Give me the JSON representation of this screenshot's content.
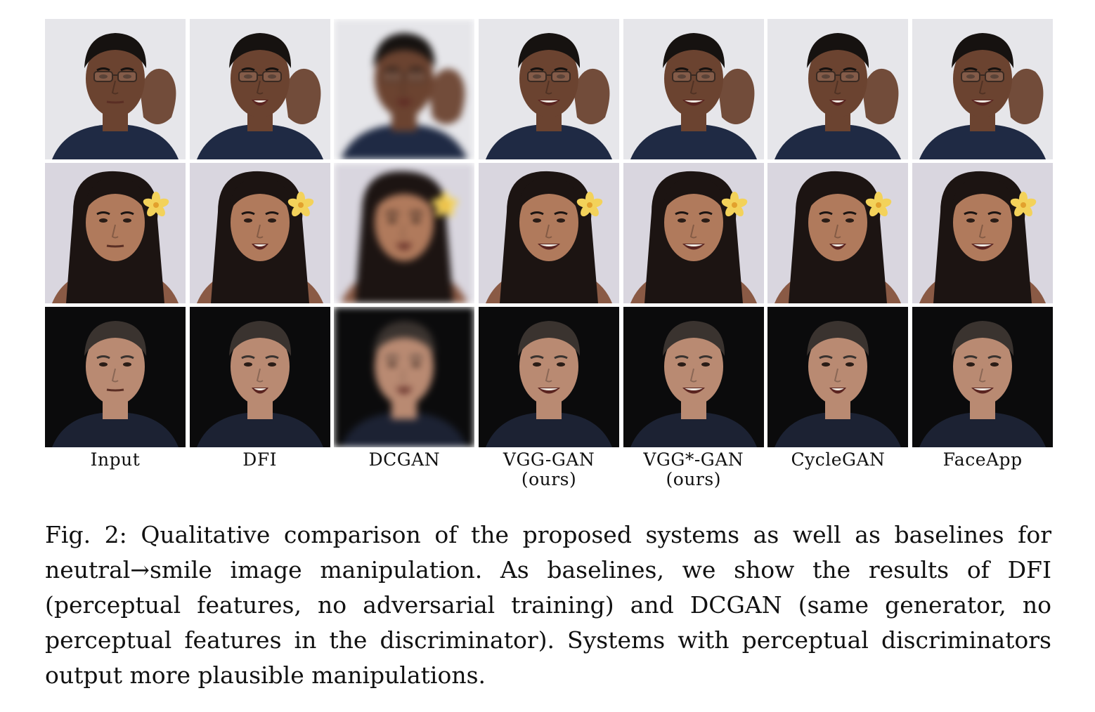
{
  "figure": {
    "column_labels": [
      {
        "line1": "Input",
        "line2": ""
      },
      {
        "line1": "DFI",
        "line2": ""
      },
      {
        "line1": "DCGAN",
        "line2": ""
      },
      {
        "line1": "VGG-GAN",
        "line2": "(ours)"
      },
      {
        "line1": "VGG*-GAN",
        "line2": "(ours)"
      },
      {
        "line1": "CycleGAN",
        "line2": ""
      },
      {
        "line1": "FaceApp",
        "line2": ""
      }
    ],
    "caption": "Fig. 2: Qualitative comparison of the proposed systems as well as baselines for neutral→smile image manipulation. As baselines, we show the results of DFI (perceptual features, no adversarial training) and DCGAN (same generator, no perceptual features in the discriminator). Systems with perceptual discriminators output more plausible manipulations."
  },
  "rows": [
    {
      "subject": "man-with-glasses",
      "background": "#e6e6ea",
      "skin": "#6b4330",
      "hair": "#161210",
      "cloth": "#1f2a44",
      "glasses": true,
      "flower": false
    },
    {
      "subject": "woman-with-flower",
      "background": "#d9d6df",
      "skin": "#b07a5c",
      "hair": "#1c1412",
      "cloth": "#8a5a45",
      "glasses": false,
      "flower": true
    },
    {
      "subject": "man-dark-background",
      "background": "#0b0b0c",
      "skin": "#b98a72",
      "hair": "#3a332f",
      "cloth": "#1c2233",
      "glasses": false,
      "flower": false
    }
  ],
  "columns_style": [
    "input",
    "dfi",
    "dcgan",
    "vgg",
    "vgg-star",
    "cyclegan",
    "faceapp"
  ]
}
